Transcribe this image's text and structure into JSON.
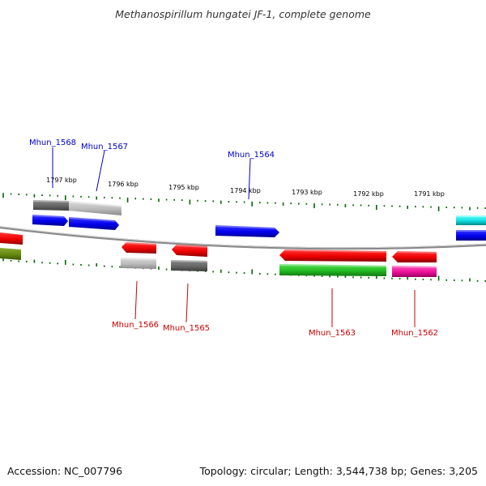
{
  "title": "Methanospirillum hungatei JF-1, complete genome",
  "footer": {
    "accession": "Accession: NC_007796",
    "topology": "Topology: circular; Length: 3,544,738 bp; Genes: 3,205"
  },
  "colors": {
    "plus_label": "#0000cc",
    "minus_label": "#cc0000",
    "tick": "#006600",
    "backbone": "#808080"
  },
  "ruler": [
    {
      "label": "1797 kbp"
    },
    {
      "label": "1796 kbp"
    },
    {
      "label": "1795 kbp"
    },
    {
      "label": "1794 kbp"
    },
    {
      "label": "1793 kbp"
    },
    {
      "label": "1792 kbp"
    },
    {
      "label": "1791 kbp"
    }
  ],
  "gene_labels": [
    {
      "name": "Mhun_1568",
      "strand": "plus"
    },
    {
      "name": "Mhun_1567",
      "strand": "plus"
    },
    {
      "name": "Mhun_1564",
      "strand": "plus"
    },
    {
      "name": "Mhun_1566",
      "strand": "minus"
    },
    {
      "name": "Mhun_1565",
      "strand": "minus"
    },
    {
      "name": "Mhun_1563",
      "strand": "minus"
    },
    {
      "name": "Mhun_1562",
      "strand": "minus"
    }
  ]
}
